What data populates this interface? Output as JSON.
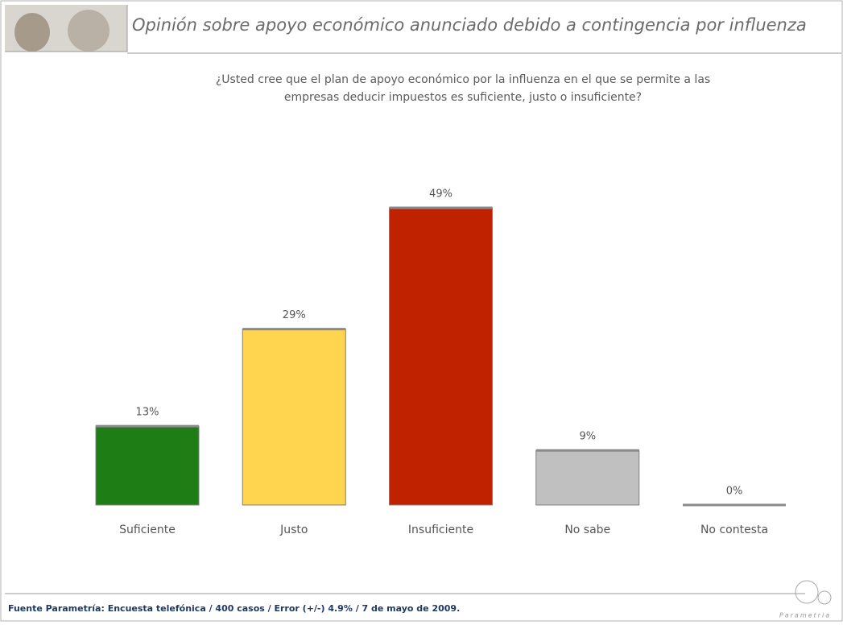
{
  "chart_data": {
    "type": "bar",
    "title": "Opinión sobre apoyo económico anunciado debido a contingencia por influenza",
    "subtitle": [
      "¿Usted cree que el plan de apoyo económico por la influenza en el que se permite a las",
      "empresas deducir impuestos es suficiente, justo o insuficiente?"
    ],
    "categories": [
      "Suficiente",
      "Justo",
      "Insuficiente",
      "No sabe",
      "No contesta"
    ],
    "values": [
      13,
      29,
      49,
      9,
      0
    ],
    "value_labels": [
      "13%",
      "29%",
      "49%",
      "9%",
      "0%"
    ],
    "colors": [
      "#1e7d14",
      "#ffd44f",
      "#c02200",
      "#c0c0c0",
      "#c0c0c0"
    ],
    "footnote": "Fuente Parametría: Encuesta telefónica / 400 casos / Error (+/-) 4.9% / 7 de mayo de 2009.",
    "logo": "Parametria"
  }
}
